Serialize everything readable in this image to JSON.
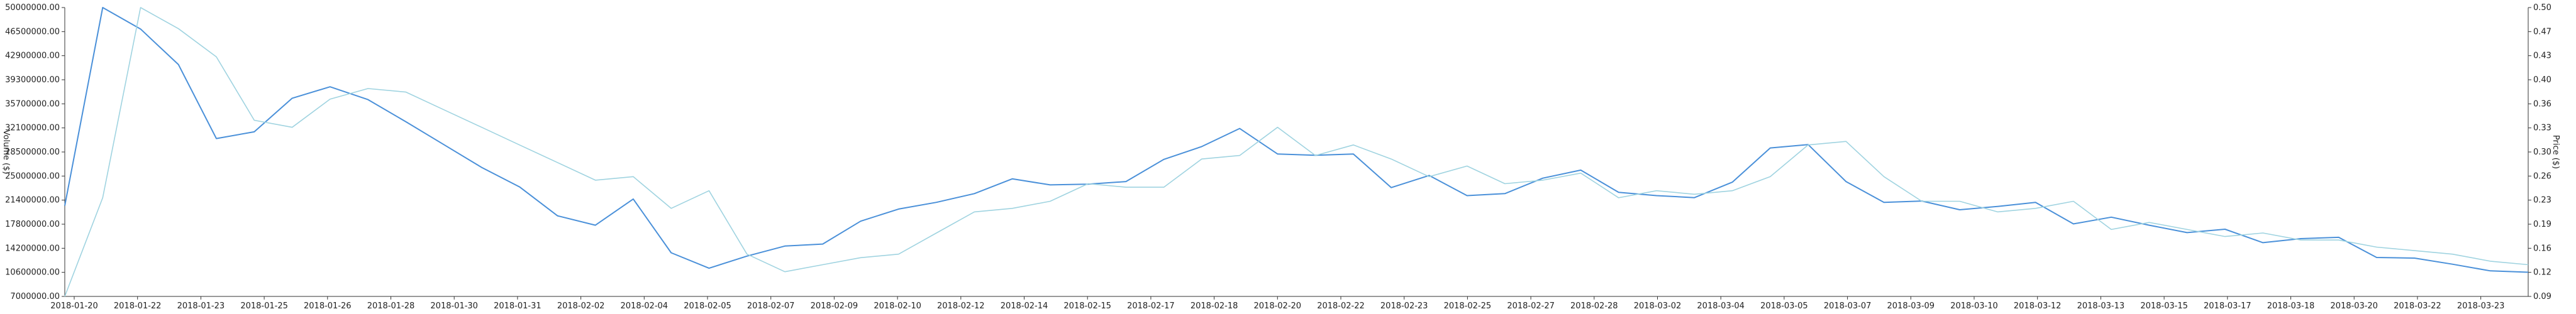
{
  "chart_data": {
    "type": "line",
    "title": "",
    "left_axis": {
      "label": "Volume ($)",
      "ylim": [
        7000000,
        50000000
      ],
      "ticks": [
        "50000000.00",
        "46500000.00",
        "42900000.00",
        "39300000.00",
        "35700000.00",
        "32100000.00",
        "28500000.00",
        "25000000.00",
        "21400000.00",
        "17800000.00",
        "14200000.00",
        "10600000.00",
        "7000000.00"
      ]
    },
    "right_axis": {
      "label": "Price ($)",
      "ylim": [
        0.09,
        0.5
      ],
      "ticks": [
        "0.50",
        "0.47",
        "0.43",
        "0.40",
        "0.36",
        "0.33",
        "0.30",
        "0.26",
        "0.23",
        "0.19",
        "0.16",
        "0.12",
        "0.09"
      ]
    },
    "x_tick_labels": [
      "2018-01-20",
      "2018-01-22",
      "2018-01-23",
      "2018-01-25",
      "2018-01-26",
      "2018-01-28",
      "2018-01-30",
      "2018-01-31",
      "2018-02-02",
      "2018-02-04",
      "2018-02-05",
      "2018-02-07",
      "2018-02-09",
      "2018-02-10",
      "2018-02-12",
      "2018-02-14",
      "2018-02-15",
      "2018-02-17",
      "2018-02-18",
      "2018-02-20",
      "2018-02-22",
      "2018-02-23",
      "2018-02-25",
      "2018-02-27",
      "2018-02-28",
      "2018-03-02",
      "2018-03-04",
      "2018-03-05",
      "2018-03-07",
      "2018-03-09",
      "2018-03-10",
      "2018-03-12",
      "2018-03-13",
      "2018-03-15",
      "2018-03-17",
      "2018-03-18",
      "2018-03-20",
      "2018-03-22",
      "2018-03-23"
    ],
    "series": [
      {
        "axis": "left",
        "color": "#4a90d9",
        "values": [
          20500000,
          50000000,
          46800000,
          41500000,
          30500000,
          31500000,
          36500000,
          38200000,
          36300000,
          33000000,
          29600000,
          26200000,
          23300000,
          19000000,
          17600000,
          21500000,
          13500000,
          11200000,
          13000000,
          14500000,
          14800000,
          18200000,
          20000000,
          21000000,
          22300000,
          24500000,
          23600000,
          23700000,
          24100000,
          27400000,
          29300000,
          32000000,
          28200000,
          28000000,
          28200000,
          23200000,
          25000000,
          22000000,
          22300000,
          24600000,
          25800000,
          22500000,
          22000000,
          21700000,
          24000000,
          29100000,
          29600000,
          24100000,
          21000000,
          21200000,
          19900000,
          20400000,
          21000000,
          17800000,
          18800000,
          17600000,
          16500000,
          17000000,
          15000000,
          15600000,
          15800000,
          12800000,
          12700000,
          11800000,
          10800000,
          10600000
        ]
      },
      {
        "axis": "right",
        "color": "#9fd3e0",
        "values": [
          0.09,
          0.23,
          0.5,
          0.47,
          0.43,
          0.34,
          0.33,
          0.37,
          0.385,
          0.38,
          0.355,
          0.33,
          0.305,
          0.28,
          0.255,
          0.26,
          0.215,
          0.24,
          0.15,
          0.125,
          0.135,
          0.145,
          0.15,
          0.18,
          0.21,
          0.215,
          0.225,
          0.25,
          0.245,
          0.245,
          0.285,
          0.29,
          0.33,
          0.29,
          0.305,
          0.285,
          0.26,
          0.275,
          0.25,
          0.255,
          0.265,
          0.23,
          0.24,
          0.235,
          0.24,
          0.26,
          0.305,
          0.31,
          0.26,
          0.225,
          0.225,
          0.21,
          0.215,
          0.225,
          0.185,
          0.195,
          0.185,
          0.175,
          0.18,
          0.17,
          0.17,
          0.16,
          0.155,
          0.15,
          0.14,
          0.135
        ]
      }
    ]
  }
}
